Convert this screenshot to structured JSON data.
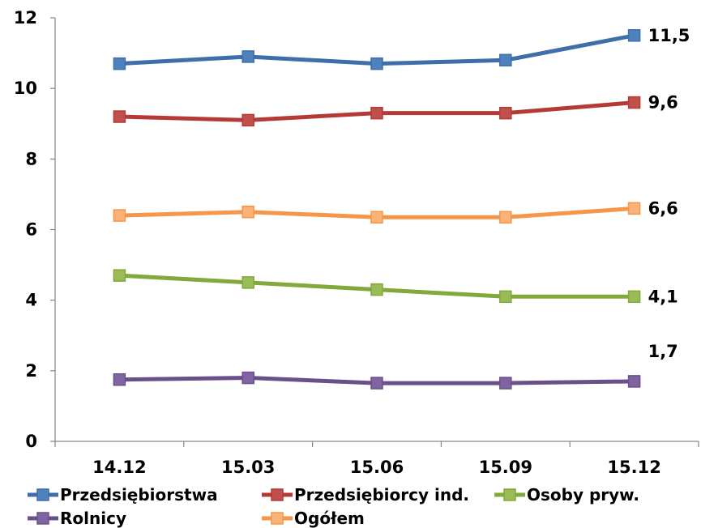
{
  "chart_data": {
    "type": "line",
    "categories": [
      "14.12",
      "15.03",
      "15.06",
      "15.09",
      "15.12"
    ],
    "ylim": [
      0,
      12
    ],
    "yticks": [
      "0",
      "2",
      "4",
      "6",
      "8",
      "10",
      "12"
    ],
    "grid": false,
    "legend_position": "bottom",
    "series": [
      {
        "name": "Przedsiębiorstwa",
        "color": "#3f6ea8",
        "marker_color": "#4f81bd",
        "values": [
          10.7,
          10.9,
          10.7,
          10.8,
          11.5
        ],
        "end_label": "11,5"
      },
      {
        "name": "Przedsiębiorcy ind.",
        "color": "#b53a35",
        "marker_color": "#c0504d",
        "values": [
          9.2,
          9.1,
          9.3,
          9.3,
          9.6
        ],
        "end_label": "9,6"
      },
      {
        "name": "Osoby pryw.",
        "color": "#82a93a",
        "marker_color": "#9bbb59",
        "values": [
          4.7,
          4.5,
          4.3,
          4.1,
          4.1
        ],
        "end_label": "4,1"
      },
      {
        "name": "Rolnicy",
        "color": "#6a4f8c",
        "marker_color": "#8064a2",
        "values": [
          1.75,
          1.8,
          1.65,
          1.65,
          1.7
        ],
        "end_label": "1,7"
      },
      {
        "name": "Ogółem",
        "color": "#f79646",
        "marker_color": "#f9b27a",
        "values": [
          6.4,
          6.5,
          6.35,
          6.35,
          6.6
        ],
        "end_label": "6,6"
      }
    ]
  }
}
